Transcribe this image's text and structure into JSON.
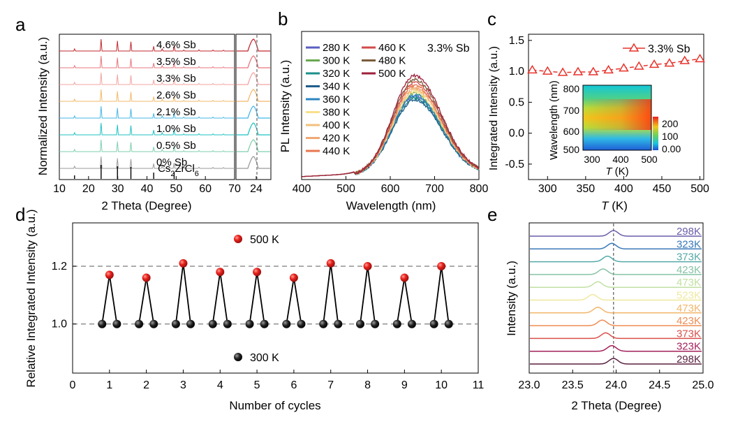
{
  "panels": {
    "a": {
      "letter": "a"
    },
    "b": {
      "letter": "b"
    },
    "c": {
      "letter": "c"
    },
    "d": {
      "letter": "d"
    },
    "e": {
      "letter": "e"
    }
  },
  "chart_data": [
    {
      "panel": "a",
      "type": "line",
      "xlabel": "2 Theta (Degree)",
      "ylabel": "Normalized Intensity (a.u.)",
      "xlim": [
        10,
        70
      ],
      "xticks": [
        "10",
        "20",
        "30",
        "40",
        "50",
        "60",
        "70"
      ],
      "inset_xticks": [
        "24"
      ],
      "series": [
        {
          "name": "4.6% Sb",
          "color": "#c0272d"
        },
        {
          "name": "3.5% Sb",
          "color": "#e8747c"
        },
        {
          "name": "3.3% Sb",
          "color": "#f3a3a0"
        },
        {
          "name": "2.6% Sb",
          "color": "#f2b969"
        },
        {
          "name": "2.1% Sb",
          "color": "#45b6e6"
        },
        {
          "name": "1.0% Sb",
          "color": "#1fc2c2"
        },
        {
          "name": "0.5% Sb",
          "color": "#7fcfae"
        },
        {
          "name": "0% Sb",
          "color": "#9a9a9a"
        },
        {
          "name": "Cs2ZrCl6",
          "color": "#000000"
        }
      ],
      "peaks_x": [
        15.2,
        24.3,
        29.9,
        34.5,
        42.3,
        45.2,
        49.3,
        52.6,
        57.8,
        62.6,
        66.2
      ],
      "peaks_h": [
        0.18,
        1.0,
        0.85,
        0.78,
        0.4,
        0.18,
        0.45,
        0.08,
        0.1,
        0.08,
        0.07
      ],
      "reference_lines_x": [
        15.2,
        24.3,
        29.9,
        34.5,
        42.3,
        49.3
      ]
    },
    {
      "panel": "b",
      "type": "line",
      "title": "3.3% Sb",
      "xlabel": "Wavelength (nm)",
      "ylabel": "PL Intensity (a.u.)",
      "xlim": [
        400,
        800
      ],
      "xticks": [
        "400",
        "500",
        "600",
        "700",
        "800"
      ],
      "series": [
        {
          "name": "280 K",
          "color": "#5a5fc0"
        },
        {
          "name": "300 K",
          "color": "#6aa84f"
        },
        {
          "name": "320 K",
          "color": "#1d8f8a"
        },
        {
          "name": "340 K",
          "color": "#1f5f8b"
        },
        {
          "name": "360 K",
          "color": "#2e86c1"
        },
        {
          "name": "380 K",
          "color": "#f7e08a"
        },
        {
          "name": "400 K",
          "color": "#f2c07a"
        },
        {
          "name": "420 K",
          "color": "#efa873"
        },
        {
          "name": "440 K",
          "color": "#e8764f"
        },
        {
          "name": "460 K",
          "color": "#d24a4a"
        },
        {
          "name": "480 K",
          "color": "#7a5c3a"
        },
        {
          "name": "500 K",
          "color": "#9e1f3a"
        }
      ],
      "peak_nm": 655,
      "peak_heights": [
        0.78,
        0.8,
        0.76,
        0.74,
        0.79,
        0.82,
        0.84,
        0.86,
        0.88,
        0.91,
        0.94,
        0.98
      ]
    },
    {
      "panel": "c",
      "type": "line",
      "xlabel_pre": "T",
      "xlabel_post": " (K)",
      "ylabel": "Integrated Intensity (a.u.)",
      "xlim": [
        275,
        505
      ],
      "ylim": [
        -0.75,
        1.6
      ],
      "xticks": [
        300,
        350,
        400,
        450,
        500
      ],
      "yticks": [
        -0.5,
        0.0,
        0.5,
        1.0,
        1.5
      ],
      "series": [
        {
          "name": "3.3% Sb",
          "color": "#e8322b",
          "x": [
            280,
            300,
            320,
            340,
            360,
            380,
            400,
            420,
            440,
            460,
            480,
            500
          ],
          "y": [
            1.02,
            1.0,
            0.98,
            0.99,
            0.99,
            1.02,
            1.05,
            1.08,
            1.11,
            1.13,
            1.17,
            1.2
          ]
        }
      ],
      "inset": {
        "type": "heatmap",
        "xlabel_pre": "T",
        "xlabel_post": " (K)",
        "ylabel": "Wavelength (nm)",
        "xticks": [
          "300",
          "400",
          "500"
        ],
        "yticks": [
          "500",
          "600",
          "700",
          "800"
        ],
        "colorbar_ticks": [
          "200",
          "100",
          "0.00"
        ]
      }
    },
    {
      "panel": "d",
      "type": "scatter",
      "xlabel": "Number of cycles",
      "ylabel": "Relative Integrated Intensity (a.u.)",
      "xlim": [
        0,
        11
      ],
      "ylim": [
        0.83,
        1.35
      ],
      "xticks": [
        0,
        1,
        2,
        3,
        4,
        5,
        6,
        7,
        8,
        9,
        10,
        11
      ],
      "yticks": [
        1.0,
        1.2
      ],
      "reference_lines_y": [
        1.0,
        1.2
      ],
      "series": [
        {
          "name": "500 K",
          "color": "#e8201c",
          "x": [
            1,
            2,
            3,
            4,
            5,
            6,
            7,
            8,
            9,
            10
          ],
          "y": [
            1.17,
            1.16,
            1.21,
            1.18,
            1.18,
            1.16,
            1.21,
            1.2,
            1.16,
            1.2
          ]
        },
        {
          "name": "300 K",
          "color": "#111111",
          "x": [
            0.8,
            1.2,
            1.8,
            2.2,
            2.8,
            3.2,
            3.8,
            4.2,
            4.8,
            5.2,
            5.8,
            6.2,
            6.8,
            7.2,
            7.8,
            8.2,
            8.8,
            9.2,
            9.8,
            10.2
          ],
          "y": [
            1.0,
            1.0,
            1.0,
            1.0,
            1.0,
            1.0,
            1.0,
            1.0,
            1.0,
            1.0,
            1.0,
            1.0,
            1.0,
            1.0,
            1.0,
            1.0,
            1.0,
            1.0,
            1.0,
            1.0
          ]
        }
      ]
    },
    {
      "panel": "e",
      "type": "line",
      "xlabel": "2 Theta (Degree)",
      "ylabel": "Intensity (a.u.)",
      "xlim": [
        23.0,
        25.0
      ],
      "xticks": [
        "23.0",
        "23.5",
        "24.0",
        "24.5",
        "25.0"
      ],
      "reference_lines_x": [
        23.97
      ],
      "series": [
        {
          "name": "298K",
          "color": "#6a5ca8",
          "peak": 23.97
        },
        {
          "name": "323K",
          "color": "#3a79b8",
          "peak": 23.95
        },
        {
          "name": "373K",
          "color": "#56a8a8",
          "peak": 23.9
        },
        {
          "name": "423K",
          "color": "#86c3a6",
          "peak": 23.85
        },
        {
          "name": "473K",
          "color": "#c2e0a2",
          "peak": 23.79
        },
        {
          "name": "523K",
          "color": "#efe8a0",
          "peak": 23.73
        },
        {
          "name": "473K",
          "color": "#f2b66a",
          "peak": 23.79
        },
        {
          "name": "423K",
          "color": "#ee8c53",
          "peak": 23.84
        },
        {
          "name": "373K",
          "color": "#d9504a",
          "peak": 23.88
        },
        {
          "name": "323K",
          "color": "#a3205a",
          "peak": 23.95
        },
        {
          "name": "298K",
          "color": "#5a1f3e",
          "peak": 23.97
        }
      ]
    }
  ]
}
